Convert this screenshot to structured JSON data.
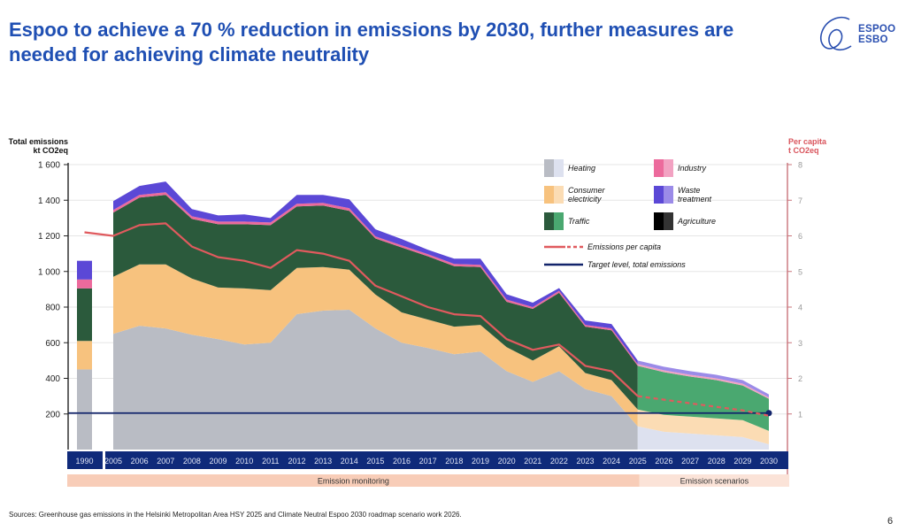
{
  "header": {
    "title": "Espoo to achieve a 70 % reduction in emissions by 2030,  further measures are needed for achieving climate neutrality",
    "logo_line1": "ESPOO",
    "logo_line2": "ESBO"
  },
  "footer": {
    "sources": "Sources: Greenhouse gas emissions in the Helsinki Metropolitan Area HSY 2025 and Climate  Neutral Espoo 2030 roadmap scenario work 2026.",
    "page_number": "6"
  },
  "chart_data": {
    "type": "area",
    "title": "Espoo to achieve a 70 % reduction in emissions by 2030,  further measures are needed for achieving climate neutrality",
    "ylabel": "Total emissions kt CO2eq",
    "ylabel_line1": "Total emissions",
    "ylabel_line2": "kt CO2eq",
    "y2label": "Per capita t CO2eq",
    "y2label_line1": "Per capita",
    "y2label_line2": "t CO2eq",
    "ylim": [
      0,
      1600
    ],
    "y2lim": [
      0,
      8
    ],
    "yticks": [
      "1 600",
      "1 400",
      "1 200",
      "1 000",
      "800",
      "600",
      "400",
      "200"
    ],
    "yticks_values": [
      1600,
      1400,
      1200,
      1000,
      800,
      600,
      400,
      200
    ],
    "y2ticks": [
      "8",
      "7",
      "6",
      "5",
      "4",
      "3",
      "2",
      "1"
    ],
    "y2ticks_values": [
      8,
      7,
      6,
      5,
      4,
      3,
      2,
      1
    ],
    "grid": true,
    "legend_position": "top-right",
    "baseline_year": "1990",
    "baseline_bar": {
      "Heating": 450,
      "Consumer electricity": 160,
      "Traffic": 295,
      "Industry": 50,
      "Waste treatment": 105,
      "Agriculture": 0
    },
    "x": [
      "2005",
      "2006",
      "2007",
      "2008",
      "2009",
      "2010",
      "2011",
      "2012",
      "2013",
      "2014",
      "2015",
      "2016",
      "2017",
      "2018",
      "2019",
      "2020",
      "2021",
      "2022",
      "2023",
      "2024",
      "2025",
      "2026",
      "2027",
      "2028",
      "2029",
      "2030"
    ],
    "monitoring_until": "2025",
    "series": [
      {
        "name": "Heating",
        "color_dark": "#b9bcc4",
        "color_light": "#dde1ef",
        "values": [
          650,
          695,
          680,
          645,
          620,
          590,
          600,
          760,
          780,
          785,
          680,
          600,
          570,
          535,
          550,
          440,
          380,
          440,
          340,
          300,
          130,
          100,
          90,
          80,
          70,
          30
        ]
      },
      {
        "name": "Consumer electricity",
        "color_dark": "#f7c27e",
        "color_light": "#fbdcb4",
        "values": [
          320,
          345,
          360,
          315,
          290,
          315,
          295,
          260,
          245,
          225,
          190,
          170,
          160,
          155,
          150,
          135,
          120,
          140,
          90,
          90,
          95,
          95,
          95,
          95,
          95,
          75
        ]
      },
      {
        "name": "Traffic",
        "color_dark": "#2b5a3c",
        "color_light": "#4aa870",
        "values": [
          360,
          375,
          390,
          335,
          355,
          360,
          365,
          345,
          345,
          330,
          315,
          365,
          355,
          340,
          325,
          255,
          290,
          300,
          260,
          280,
          245,
          240,
          225,
          215,
          195,
          180
        ]
      },
      {
        "name": "Industry",
        "color_dark": "#ec6a9c",
        "color_light": "#f2a2c2",
        "values": [
          15,
          15,
          15,
          15,
          15,
          15,
          15,
          15,
          15,
          15,
          12,
          12,
          12,
          12,
          12,
          12,
          10,
          12,
          10,
          10,
          10,
          10,
          10,
          10,
          10,
          8
        ]
      },
      {
        "name": "Waste treatment",
        "color_dark": "#5b48d6",
        "color_light": "#9b8be8",
        "values": [
          50,
          50,
          60,
          40,
          35,
          40,
          25,
          50,
          45,
          50,
          40,
          35,
          25,
          30,
          35,
          30,
          25,
          15,
          25,
          25,
          20,
          20,
          20,
          20,
          20,
          17
        ]
      },
      {
        "name": "Agriculture",
        "color_dark": "#000000",
        "color_light": "#333333",
        "values": [
          0,
          0,
          0,
          0,
          0,
          0,
          0,
          0,
          0,
          0,
          0,
          0,
          0,
          0,
          0,
          0,
          0,
          0,
          0,
          0,
          0,
          0,
          0,
          0,
          0,
          0
        ]
      }
    ],
    "per_capita": {
      "name": "Emissions per capita",
      "color": "#e05a5e",
      "x": [
        "1990",
        "2005",
        "2006",
        "2007",
        "2008",
        "2009",
        "2010",
        "2011",
        "2012",
        "2013",
        "2014",
        "2015",
        "2016",
        "2017",
        "2018",
        "2019",
        "2020",
        "2021",
        "2022",
        "2023",
        "2024",
        "2025",
        "2026",
        "2027",
        "2028",
        "2029",
        "2030"
      ],
      "values": [
        6.1,
        6.0,
        6.3,
        6.35,
        5.7,
        5.4,
        5.3,
        5.1,
        5.6,
        5.5,
        5.3,
        4.6,
        4.3,
        4.0,
        3.8,
        3.75,
        3.1,
        2.8,
        2.95,
        2.35,
        2.2,
        1.5,
        1.4,
        1.3,
        1.2,
        1.1,
        0.95
      ],
      "projected_from": "2025"
    },
    "target": {
      "name": "Target level, total emissions",
      "color": "#12246b",
      "value": 205
    },
    "legend": [
      {
        "label": "Heating"
      },
      {
        "label": "Consumer electricity"
      },
      {
        "label": "Traffic"
      },
      {
        "label": "Industry"
      },
      {
        "label": "Waste treatment"
      },
      {
        "label": "Agriculture"
      },
      {
        "label": "Emissions per capita"
      },
      {
        "label": "Target level, total emissions"
      }
    ],
    "bands": [
      {
        "label": "Emission monitoring",
        "from": "1990",
        "to": "2025"
      },
      {
        "label": "Emission scenarios",
        "from": "2025",
        "to": "2030"
      }
    ]
  }
}
